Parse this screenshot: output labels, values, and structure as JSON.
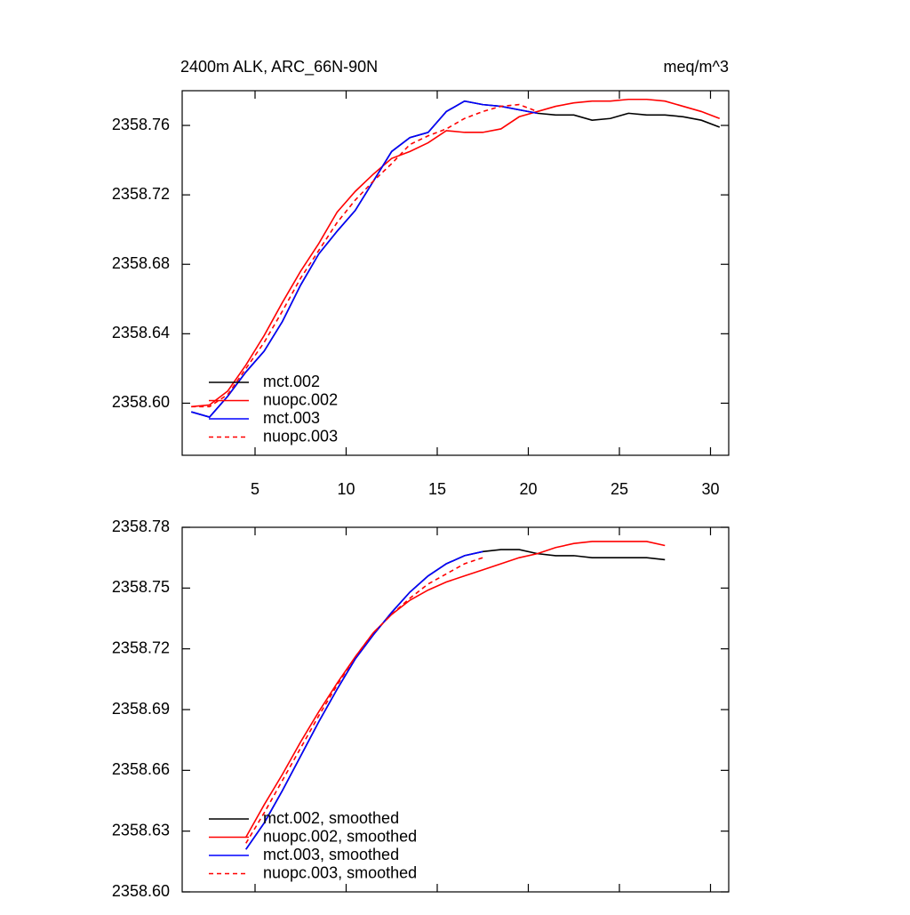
{
  "chart_data": [
    {
      "type": "line",
      "title": "2400m ALK, ARC_66N-90N",
      "right_title": "meq/m^3",
      "x": [
        1.5,
        2.5,
        3.5,
        4.5,
        5.5,
        6.5,
        7.5,
        8.5,
        9.5,
        10.5,
        11.5,
        12.5,
        13.5,
        14.5,
        15.5,
        16.5,
        17.5,
        18.5,
        19.5,
        20.5,
        21.5,
        22.5,
        23.5,
        24.5,
        25.5,
        26.5,
        27.5,
        28.5,
        29.5,
        30.5
      ],
      "series": [
        {
          "name": "mct.002",
          "color": "#000000",
          "line_style": "solid",
          "values": [
            2358.595,
            2358.592,
            2358.604,
            2358.618,
            2358.63,
            2358.647,
            2358.668,
            2358.686,
            2358.699,
            2358.711,
            2358.728,
            2358.745,
            2358.753,
            2358.756,
            2358.768,
            2358.774,
            2358.772,
            2358.771,
            2358.769,
            2358.767,
            2358.766,
            2358.766,
            2358.763,
            2358.764,
            2358.767,
            2358.766,
            2358.766,
            2358.765,
            2358.763,
            2358.759
          ]
        },
        {
          "name": "nuopc.002",
          "color": "#ff0000",
          "line_style": "solid",
          "values": [
            2358.598,
            2358.599,
            2358.607,
            2358.622,
            2358.639,
            2358.658,
            2358.676,
            2358.692,
            2358.71,
            2358.722,
            2358.732,
            2358.741,
            2358.745,
            2358.75,
            2358.757,
            2358.756,
            2358.756,
            2358.758,
            2358.765,
            2358.768,
            2358.771,
            2358.773,
            2358.774,
            2358.774,
            2358.775,
            2358.775,
            2358.774,
            2358.771,
            2358.768,
            2358.764
          ]
        },
        {
          "name": "mct.003",
          "color": "#0000ff",
          "line_style": "solid",
          "values": [
            2358.595,
            2358.592,
            2358.604,
            2358.618,
            2358.63,
            2358.647,
            2358.668,
            2358.686,
            2358.699,
            2358.711,
            2358.728,
            2358.745,
            2358.753,
            2358.756,
            2358.768,
            2358.774,
            2358.772,
            2358.771,
            2358.769,
            2358.767,
            null,
            null,
            null,
            null,
            null,
            null,
            null,
            null,
            null,
            null
          ]
        },
        {
          "name": "nuopc.003",
          "color": "#ff0000",
          "line_style": "dashed",
          "values": [
            2358.598,
            2358.598,
            2358.605,
            2358.62,
            2358.635,
            2358.653,
            2358.672,
            2358.688,
            2358.704,
            2358.717,
            2358.728,
            2358.738,
            2358.749,
            2358.754,
            2358.758,
            2358.764,
            2358.768,
            2358.771,
            2358.772,
            2358.768,
            null,
            null,
            null,
            null,
            null,
            null,
            null,
            null,
            null,
            null
          ]
        }
      ],
      "xlim": [
        1,
        31
      ],
      "xticks": [
        5,
        10,
        15,
        20,
        25,
        30
      ],
      "xtick_labels": true,
      "ylim": [
        2358.57,
        2358.78
      ],
      "yticks": [
        {
          "value": 2358.6,
          "label": "2358.60"
        },
        2358.64,
        2358.68,
        2358.72,
        2358.76
      ],
      "legend": "lower left",
      "grid": false
    },
    {
      "type": "line",
      "x": [
        4.5,
        5.5,
        6.5,
        7.5,
        8.5,
        9.5,
        10.5,
        11.5,
        12.5,
        13.5,
        14.5,
        15.5,
        16.5,
        17.5,
        18.5,
        19.5,
        20.5,
        21.5,
        22.5,
        23.5,
        24.5,
        25.5,
        26.5,
        27.5
      ],
      "series": [
        {
          "name": "mct.002, smoothed",
          "color": "#000000",
          "line_style": "solid",
          "values": [
            2358.621,
            2358.634,
            2358.65,
            2358.667,
            2358.684,
            2358.7,
            2358.715,
            2358.727,
            2358.738,
            2358.748,
            2358.756,
            2358.762,
            2358.766,
            2358.768,
            2358.769,
            2358.769,
            2358.767,
            2358.766,
            2358.766,
            2358.765,
            2358.765,
            2358.765,
            2358.765,
            2358.764
          ]
        },
        {
          "name": "nuopc.002, smoothed",
          "color": "#ff0000",
          "line_style": "solid",
          "values": [
            2358.627,
            2358.643,
            2358.658,
            2358.674,
            2358.689,
            2358.703,
            2358.716,
            2358.728,
            2358.737,
            2358.744,
            2358.749,
            2358.753,
            2358.756,
            2358.759,
            2358.762,
            2358.765,
            2358.767,
            2358.77,
            2358.772,
            2358.773,
            2358.773,
            2358.773,
            2358.773,
            2358.771
          ]
        },
        {
          "name": "mct.003, smoothed",
          "color": "#0000ff",
          "line_style": "solid",
          "values": [
            2358.621,
            2358.634,
            2358.65,
            2358.667,
            2358.684,
            2358.7,
            2358.715,
            2358.727,
            2358.738,
            2358.748,
            2358.756,
            2358.762,
            2358.766,
            2358.768,
            null,
            null,
            null,
            null,
            null,
            null,
            null,
            null,
            null,
            null
          ]
        },
        {
          "name": "nuopc.003, smoothed",
          "color": "#ff0000",
          "line_style": "dashed",
          "values": [
            2358.624,
            2358.639,
            2358.655,
            2358.671,
            2358.687,
            2358.702,
            2358.716,
            2358.728,
            2358.737,
            2358.745,
            2358.752,
            2358.757,
            2358.762,
            2358.765,
            null,
            null,
            null,
            null,
            null,
            null,
            null,
            null,
            null,
            null
          ]
        }
      ],
      "xlim": [
        1,
        31
      ],
      "xticks": [
        5,
        10,
        15,
        20,
        25,
        30
      ],
      "xtick_labels": false,
      "ylim": [
        2358.6,
        2358.78
      ],
      "yticks": [
        {
          "value": 2358.6,
          "label": "2358.60"
        },
        2358.63,
        2358.66,
        2358.69,
        2358.72,
        2358.75,
        2358.78
      ],
      "legend": "lower left",
      "grid": false
    }
  ]
}
